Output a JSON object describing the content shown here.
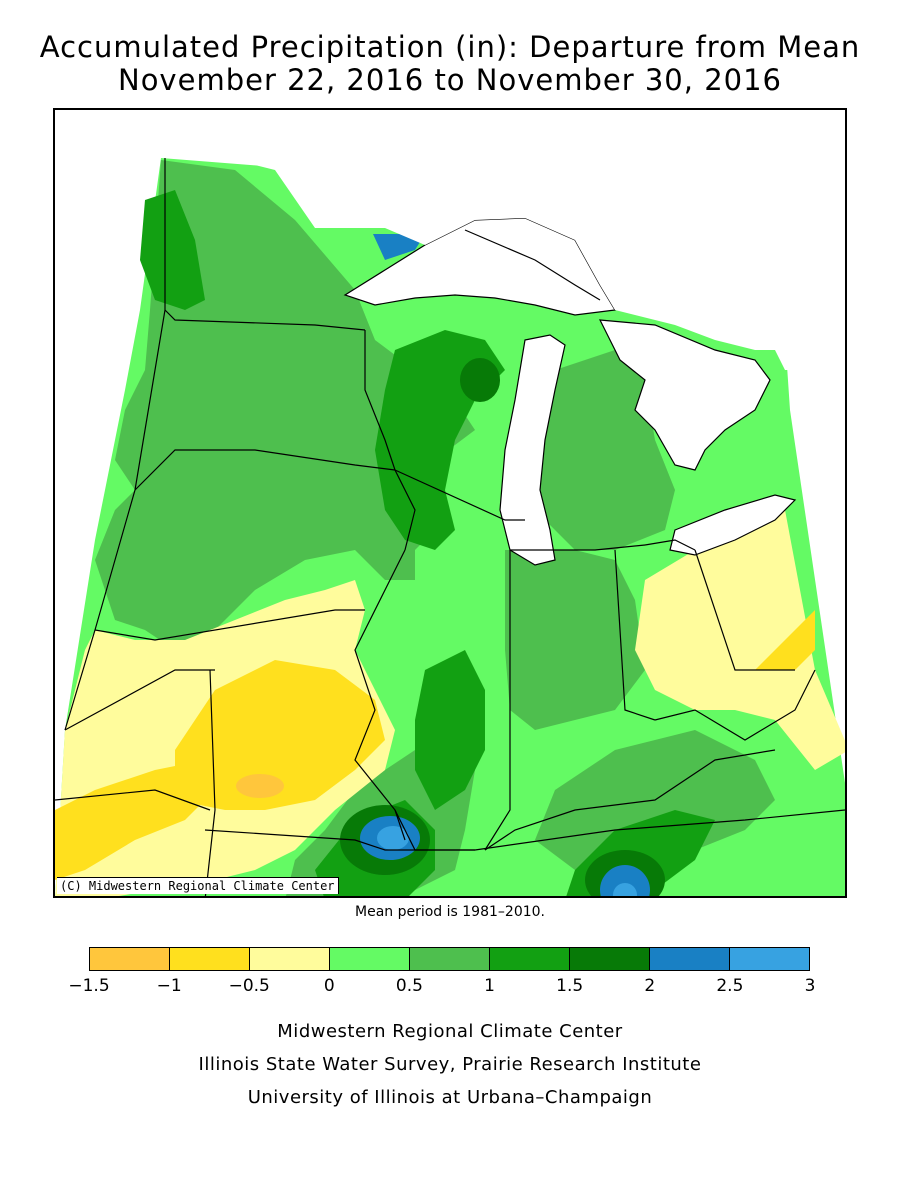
{
  "title_line1": "Accumulated Precipitation (in): Departure from Mean",
  "title_line2": "November 22, 2016 to November 30, 2016",
  "map_copyright": "(C) Midwestern Regional Climate Center",
  "mean_period_note": "Mean period is 1981–2010.",
  "legend": {
    "ticks": [
      "−1.5",
      "−1",
      "−0.5",
      "0",
      "0.5",
      "1",
      "1.5",
      "2",
      "2.5",
      "3"
    ],
    "colors": [
      "#ffc63c",
      "#ffe01e",
      "#fffc9c",
      "#64fa64",
      "#4ebf4e",
      "#12a012",
      "#077a07",
      "#1980c4",
      "#37a2e1"
    ]
  },
  "credits": {
    "line1": "Midwestern Regional Climate Center",
    "line2": "Illinois State Water Survey, Prairie Research Institute",
    "line3": "University of Illinois at Urbana–Champaign"
  }
}
